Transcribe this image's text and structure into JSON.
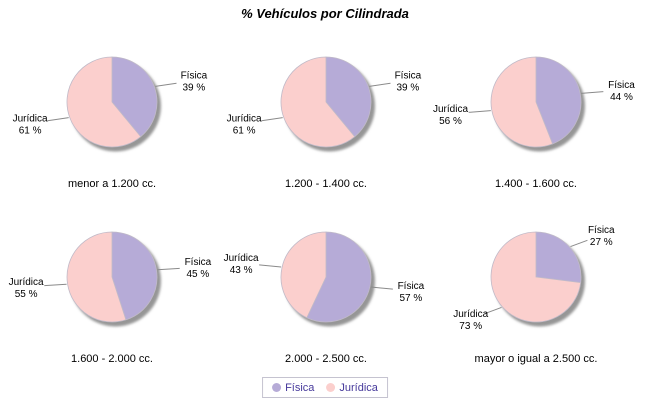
{
  "title": "% Vehículos por Cilindrada",
  "colors": {
    "fisica": "#b6abd7",
    "juridica": "#fbcfcd",
    "shadow": "#969696",
    "leader_line": "#8a8a8a",
    "slice_outline": "#c0bac8",
    "legend_text": "#46399b",
    "legend_border": "#c5c3d0",
    "label_text": "#000000"
  },
  "legend": {
    "position": "bottom",
    "items": [
      {
        "label": "Física",
        "color": "#b6abd7"
      },
      {
        "label": "Jurídica",
        "color": "#fbcfcd"
      }
    ]
  },
  "chart_data": {
    "type": "pie",
    "title": "% Vehículos por Cilindrada",
    "grid": "2x3",
    "unit": "%",
    "label_format": "{value} %",
    "legend_entries": [
      "Física",
      "Jurídica"
    ],
    "legend_position": "bottom",
    "charts": [
      {
        "category": "menor a 1.200 cc.",
        "slices": [
          {
            "label": "Física",
            "value": 39
          },
          {
            "label": "Jurídica",
            "value": 61
          }
        ]
      },
      {
        "category": "1.200 - 1.400 cc.",
        "slices": [
          {
            "label": "Física",
            "value": 39
          },
          {
            "label": "Jurídica",
            "value": 61
          }
        ]
      },
      {
        "category": "1.400 - 1.600 cc.",
        "slices": [
          {
            "label": "Física",
            "value": 44
          },
          {
            "label": "Jurídica",
            "value": 56
          }
        ]
      },
      {
        "category": "1.600 - 2.000 cc.",
        "slices": [
          {
            "label": "Física",
            "value": 45
          },
          {
            "label": "Jurídica",
            "value": 55
          }
        ]
      },
      {
        "category": "2.000 - 2.500 cc.",
        "slices": [
          {
            "label": "Física",
            "value": 57
          },
          {
            "label": "Jurídica",
            "value": 43
          }
        ]
      },
      {
        "category": "mayor o igual a 2.500 cc.",
        "slices": [
          {
            "label": "Física",
            "value": 27
          },
          {
            "label": "Jurídica",
            "value": 73
          }
        ]
      }
    ]
  }
}
